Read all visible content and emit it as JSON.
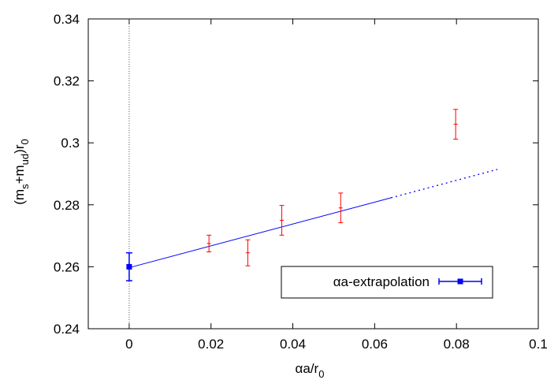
{
  "chart_data": {
    "type": "scatter",
    "xlabel": {
      "main": "αa/r",
      "sub": "0"
    },
    "ylabel": {
      "paren_open": "(m",
      "s_sub": "s",
      "plus": "+m",
      "ud_sub": "ud",
      "paren_close": ")r",
      "r_sub": "0"
    },
    "xlim": [
      -0.01,
      0.1
    ],
    "ylim": [
      0.24,
      0.34
    ],
    "xticks": [
      0,
      0.02,
      0.04,
      0.06,
      0.08,
      0.1
    ],
    "xtick_labels": [
      "0",
      "0.02",
      "0.04",
      "0.06",
      "0.08",
      "0.1"
    ],
    "yticks": [
      0.24,
      0.26,
      0.28,
      0.3,
      0.32,
      0.34
    ],
    "ytick_labels": [
      "0.24",
      "0.26",
      "0.28",
      "0.3",
      "0.32",
      "0.34"
    ],
    "grid": false,
    "vertical_reference_line_x": 0,
    "data_points": {
      "color": "#ff0000",
      "points": [
        {
          "x": 0.0195,
          "y": 0.2675,
          "err": 0.0027
        },
        {
          "x": 0.029,
          "y": 0.2645,
          "err": 0.0042
        },
        {
          "x": 0.0373,
          "y": 0.275,
          "err": 0.0048
        },
        {
          "x": 0.0517,
          "y": 0.279,
          "err": 0.0048
        },
        {
          "x": 0.0798,
          "y": 0.306,
          "err": 0.0048
        }
      ]
    },
    "fit": {
      "color": "#0000ff",
      "intercept": 0.2597,
      "slope": 0.3525,
      "solid_range": [
        0,
        0.064
      ],
      "dotted_range": [
        0.064,
        0.09
      ]
    },
    "extrapolated_point": {
      "x": 0,
      "y": 0.26,
      "err": 0.0045,
      "color": "#0000ff"
    },
    "legend": {
      "label": "αa-extrapolation",
      "placement": "bottom-right"
    }
  }
}
